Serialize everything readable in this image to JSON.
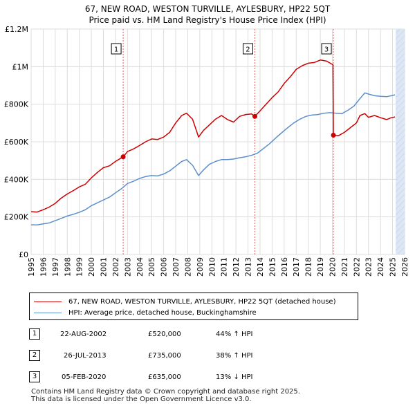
{
  "title_line1": "67, NEW ROAD, WESTON TURVILLE, AYLESBURY, HP22 5QT",
  "title_line2": "Price paid vs. HM Land Registry's House Price Index (HPI)",
  "colors": {
    "property": "#cc0000",
    "hpi": "#5b8fcc",
    "shade": "#dde6f5",
    "hatch": "#c9d3e3",
    "grid": "#dcdcdc",
    "vline": "#e06060"
  },
  "chart_data": {
    "type": "line",
    "title": "Price paid vs. HM Land Registry's House Price Index (HPI)",
    "xlim": [
      1995,
      2026
    ],
    "ylim": [
      0,
      1200000
    ],
    "x_ticks": [
      "1995",
      "1996",
      "1997",
      "1998",
      "1999",
      "2000",
      "2001",
      "2002",
      "2003",
      "2004",
      "2005",
      "2006",
      "2007",
      "2008",
      "2009",
      "2010",
      "2011",
      "2012",
      "2013",
      "2014",
      "2015",
      "2016",
      "2017",
      "2018",
      "2019",
      "2020",
      "2021",
      "2022",
      "2023",
      "2024",
      "2025",
      "2026"
    ],
    "y_ticks": [
      {
        "value": 0,
        "label": "£0"
      },
      {
        "value": 200000,
        "label": "£200K"
      },
      {
        "value": 400000,
        "label": "£400K"
      },
      {
        "value": 600000,
        "label": "£600K"
      },
      {
        "value": 800000,
        "label": "£800K"
      },
      {
        "value": 1000000,
        "label": "£1M"
      },
      {
        "value": 1200000,
        "label": "£1.2M"
      }
    ],
    "shaded_range": [
      2025.25,
      2026
    ],
    "series": [
      {
        "name": "67, NEW ROAD, WESTON TURVILLE, AYLESBURY, HP22 5QT (detached house)",
        "x": [
          1995,
          1995.5,
          1996,
          1996.5,
          1997,
          1997.5,
          1998,
          1998.5,
          1999,
          1999.5,
          2000,
          2000.5,
          2001,
          2001.5,
          2002,
          2002.64,
          2003,
          2003.5,
          2004,
          2004.5,
          2005,
          2005.5,
          2006,
          2006.5,
          2007,
          2007.5,
          2007.9,
          2008.4,
          2008.9,
          2009.3,
          2009.8,
          2010.3,
          2010.8,
          2011.3,
          2011.8,
          2012.3,
          2012.8,
          2013.3,
          2013.57,
          2014,
          2014.5,
          2015,
          2015.5,
          2016,
          2016.5,
          2017,
          2017.5,
          2018,
          2018.5,
          2019,
          2019.5,
          2020.05,
          2020.09,
          2020.5,
          2021,
          2021.5,
          2022,
          2022.3,
          2022.7,
          2023,
          2023.5,
          2024,
          2024.5,
          2024.9,
          2025.2
        ],
        "y": [
          228000,
          226000,
          238000,
          252000,
          272000,
          300000,
          322000,
          340000,
          360000,
          374000,
          408000,
          437000,
          462000,
          472000,
          495000,
          520000,
          548000,
          562000,
          580000,
          600000,
          615000,
          612000,
          625000,
          650000,
          700000,
          740000,
          752000,
          720000,
          625000,
          660000,
          690000,
          720000,
          740000,
          718000,
          705000,
          735000,
          745000,
          748000,
          735000,
          765000,
          800000,
          835000,
          865000,
          910000,
          945000,
          985000,
          1005000,
          1018000,
          1022000,
          1035000,
          1030000,
          1010000,
          635000,
          632000,
          650000,
          675000,
          700000,
          740000,
          750000,
          730000,
          740000,
          728000,
          718000,
          728000,
          732000
        ]
      },
      {
        "name": "HPI: Average price, detached house, Buckinghamshire",
        "x": [
          1995,
          1995.5,
          1996,
          1996.5,
          1997,
          1997.5,
          1998,
          1998.5,
          1999,
          1999.5,
          2000,
          2000.5,
          2001,
          2001.5,
          2002,
          2002.5,
          2003,
          2003.5,
          2004,
          2004.5,
          2005,
          2005.5,
          2006,
          2006.5,
          2007,
          2007.5,
          2007.9,
          2008.4,
          2008.9,
          2009.3,
          2009.8,
          2010.3,
          2010.8,
          2011.3,
          2011.8,
          2012.3,
          2012.8,
          2013.3,
          2013.8,
          2014.3,
          2014.8,
          2015.3,
          2015.8,
          2016.3,
          2016.8,
          2017.3,
          2017.8,
          2018.3,
          2018.8,
          2019.3,
          2019.8,
          2020.3,
          2020.8,
          2021.3,
          2021.8,
          2022.3,
          2022.7,
          2023.1,
          2023.5,
          2024,
          2024.5,
          2024.9,
          2025.2
        ],
        "y": [
          158000,
          157000,
          163000,
          168000,
          180000,
          192000,
          205000,
          214000,
          225000,
          238000,
          260000,
          275000,
          290000,
          305000,
          328000,
          350000,
          378000,
          390000,
          405000,
          415000,
          420000,
          418000,
          428000,
          445000,
          470000,
          495000,
          505000,
          475000,
          420000,
          450000,
          480000,
          495000,
          505000,
          505000,
          508000,
          515000,
          520000,
          528000,
          540000,
          565000,
          590000,
          620000,
          648000,
          675000,
          700000,
          720000,
          735000,
          742000,
          745000,
          752000,
          755000,
          752000,
          750000,
          768000,
          790000,
          830000,
          860000,
          852000,
          845000,
          842000,
          840000,
          845000,
          850000
        ]
      }
    ],
    "sales": [
      {
        "number": "1",
        "x": 2002.64,
        "y": 520000,
        "date": "22-AUG-2002",
        "price": "£520,000",
        "change": "44% ↑ HPI"
      },
      {
        "number": "2",
        "x": 2013.57,
        "y": 735000,
        "date": "26-JUL-2013",
        "price": "£735,000",
        "change": "38% ↑ HPI"
      },
      {
        "number": "3",
        "x": 2020.09,
        "y": 635000,
        "date": "05-FEB-2020",
        "price": "£635,000",
        "change": "13% ↓ HPI"
      }
    ]
  },
  "legend": {
    "property_label": "67, NEW ROAD, WESTON TURVILLE, AYLESBURY, HP22 5QT (detached house)",
    "hpi_label": "HPI: Average price, detached house, Buckinghamshire"
  },
  "footer": {
    "line1": "Contains HM Land Registry data © Crown copyright and database right 2025.",
    "line2": "This data is licensed under the Open Government Licence v3.0."
  }
}
